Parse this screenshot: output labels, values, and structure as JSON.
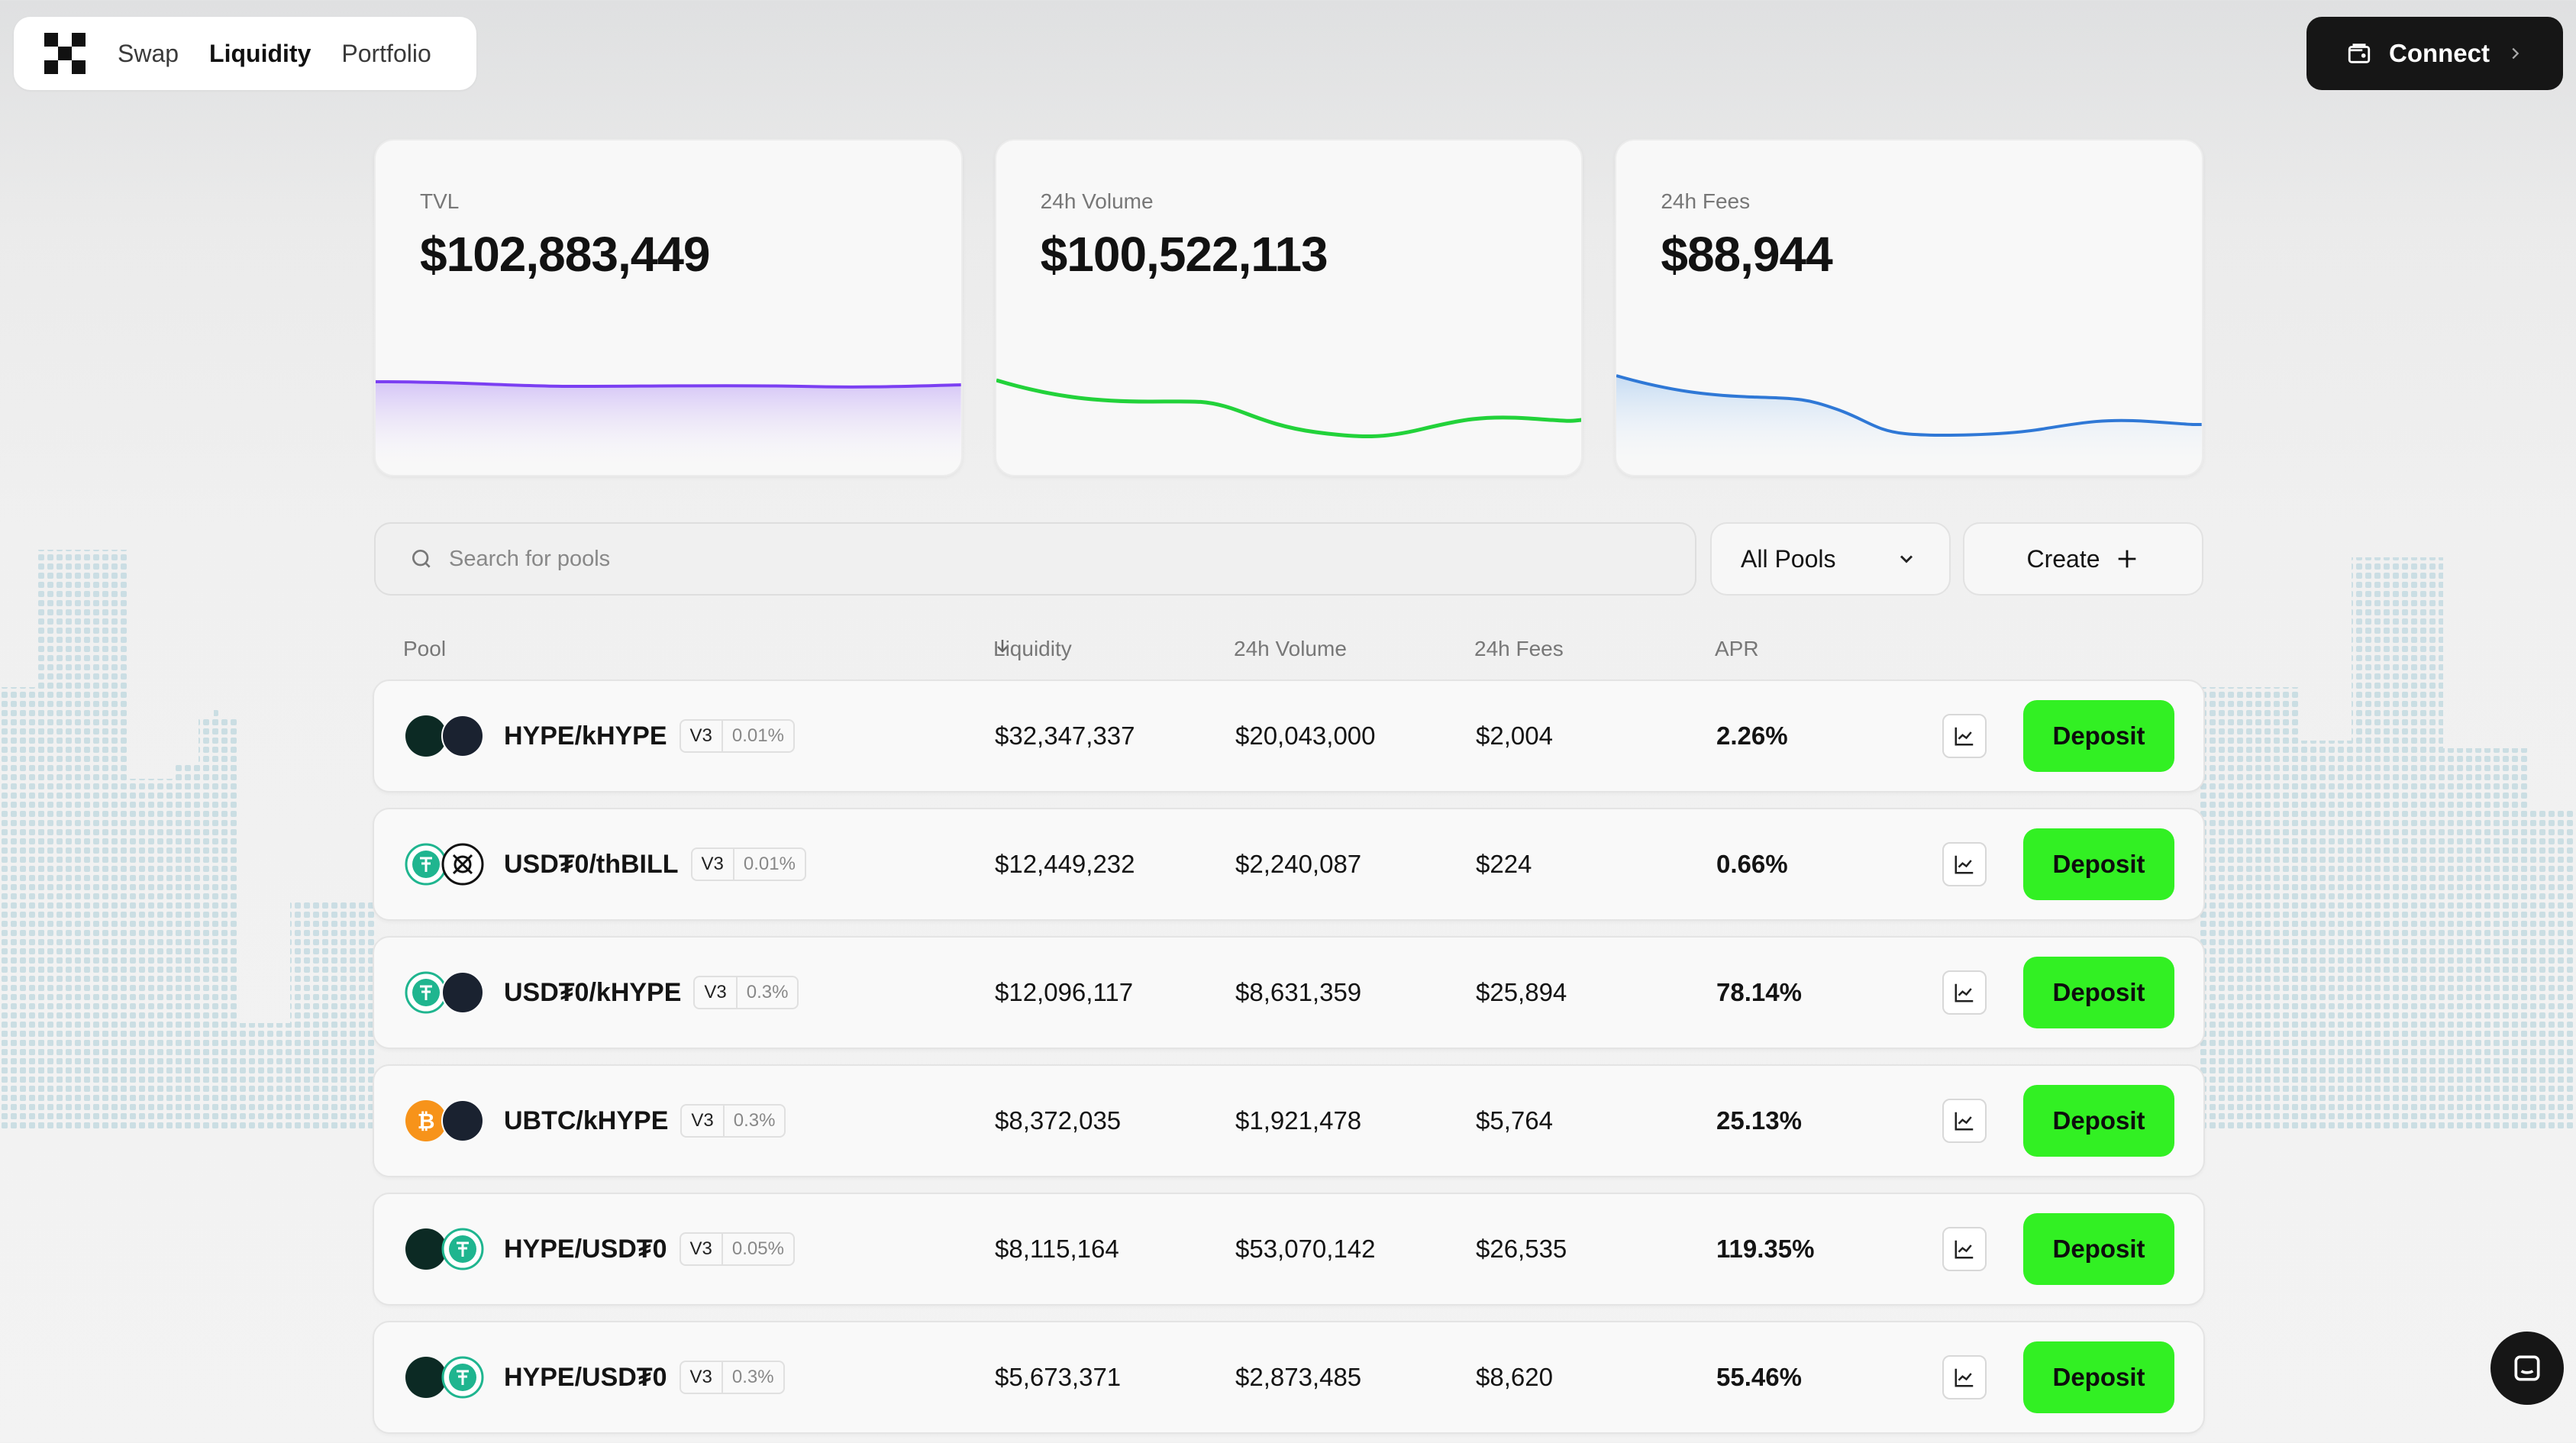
{
  "nav": {
    "links": [
      {
        "label": "Swap",
        "active": false
      },
      {
        "label": "Liquidity",
        "active": true
      },
      {
        "label": "Portfolio",
        "active": false
      }
    ]
  },
  "connect": {
    "label": "Connect"
  },
  "stats": [
    {
      "label": "TVL",
      "value": "$102,883,449",
      "color": "#7b3ff2"
    },
    {
      "label": "24h Volume",
      "value": "$100,522,113",
      "color": "#22d23a"
    },
    {
      "label": "24h Fees",
      "value": "$88,944",
      "color": "#2f78d6"
    }
  ],
  "search": {
    "placeholder": "Search for pools"
  },
  "filter": {
    "selected": "All Pools"
  },
  "create": {
    "label": "Create"
  },
  "table": {
    "headers": {
      "pool": "Pool",
      "liquidity": "Liquidity",
      "volume": "24h Volume",
      "fees": "24h Fees",
      "apr": "APR"
    },
    "deposit_label": "Deposit",
    "rows": [
      {
        "pair": "HYPE/kHYPE",
        "version": "V3",
        "fee": "0.01%",
        "liquidity": "$32,347,337",
        "volume": "$20,043,000",
        "fees": "$2,004",
        "apr": "2.26%",
        "tokens": [
          "hype-icon",
          "khype-icon"
        ]
      },
      {
        "pair": "USD₮0/thBILL",
        "version": "V3",
        "fee": "0.01%",
        "liquidity": "$12,449,232",
        "volume": "$2,240,087",
        "fees": "$224",
        "apr": "0.66%",
        "tokens": [
          "usdt0-icon",
          "thbill-icon"
        ]
      },
      {
        "pair": "USD₮0/kHYPE",
        "version": "V3",
        "fee": "0.3%",
        "liquidity": "$12,096,117",
        "volume": "$8,631,359",
        "fees": "$25,894",
        "apr": "78.14%",
        "tokens": [
          "usdt0-icon",
          "khype-icon"
        ]
      },
      {
        "pair": "UBTC/kHYPE",
        "version": "V3",
        "fee": "0.3%",
        "liquidity": "$8,372,035",
        "volume": "$1,921,478",
        "fees": "$5,764",
        "apr": "25.13%",
        "tokens": [
          "ubtc-icon",
          "khype-icon"
        ]
      },
      {
        "pair": "HYPE/USD₮0",
        "version": "V3",
        "fee": "0.05%",
        "liquidity": "$8,115,164",
        "volume": "$53,070,142",
        "fees": "$26,535",
        "apr": "119.35%",
        "tokens": [
          "hype-icon",
          "usdt0-icon"
        ]
      },
      {
        "pair": "HYPE/USD₮0",
        "version": "V3",
        "fee": "0.3%",
        "liquidity": "$5,673,371",
        "volume": "$2,873,485",
        "fees": "$8,620",
        "apr": "55.46%",
        "tokens": [
          "hype-icon",
          "usdt0-icon"
        ]
      }
    ]
  },
  "colors": {
    "deposit": "#32f023",
    "dark": "#161616"
  }
}
